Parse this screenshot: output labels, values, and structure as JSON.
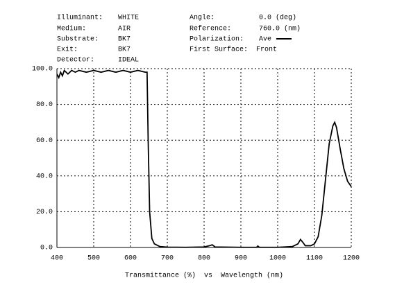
{
  "chart_data": {
    "type": "line",
    "info_left": [
      {
        "label": "Illuminant:",
        "value": "WHITE"
      },
      {
        "label": "Medium:",
        "value": "AIR"
      },
      {
        "label": "Substrate:",
        "value": "BK7"
      },
      {
        "label": "Exit:",
        "value": "BK7"
      },
      {
        "label": "Detector:",
        "value": "IDEAL"
      }
    ],
    "info_right": [
      {
        "label": "Angle:",
        "value": "0.0 (deg)"
      },
      {
        "label": "Reference:",
        "value": "760.0 (nm)"
      },
      {
        "label": "Polarization:",
        "value": "Ave"
      },
      {
        "label": "First Surface:",
        "value": "Front"
      }
    ],
    "xlabel": "Transmittance (%)  vs  Wavelength (nm)",
    "xlim": [
      400,
      1200
    ],
    "xticks": [
      400,
      500,
      600,
      700,
      800,
      900,
      1000,
      1100,
      1200
    ],
    "ylim": [
      0,
      100
    ],
    "yticks": [
      {
        "value": 0,
        "label": "0.0"
      },
      {
        "value": 20,
        "label": "20.0"
      },
      {
        "value": 40,
        "label": "40.0"
      },
      {
        "value": 60,
        "label": "60.0"
      },
      {
        "value": 80,
        "label": "80.0"
      },
      {
        "value": 100,
        "label": "100.0"
      }
    ],
    "grid": true,
    "x": [
      400,
      405,
      410,
      415,
      420,
      430,
      440,
      450,
      460,
      480,
      500,
      520,
      540,
      560,
      580,
      600,
      620,
      640,
      645,
      648,
      652,
      658,
      665,
      680,
      700,
      750,
      800,
      815,
      822,
      830,
      900,
      943,
      946,
      950,
      1000,
      1040,
      1055,
      1062,
      1068,
      1075,
      1090,
      1100,
      1110,
      1120,
      1130,
      1140,
      1150,
      1155,
      1160,
      1170,
      1180,
      1190,
      1200
    ],
    "series": [
      {
        "color": "#000000",
        "values": [
          97,
          95,
          98,
          96,
          99,
          97,
          99,
          98,
          99,
          98,
          99,
          98,
          99,
          98,
          99,
          98,
          99,
          98,
          98,
          60,
          20,
          5,
          2,
          0.5,
          0.2,
          0.1,
          0.3,
          1,
          1.5,
          0.3,
          0.1,
          0.1,
          0.8,
          0.1,
          0.1,
          0.5,
          2,
          4.5,
          3,
          1,
          1,
          2,
          6,
          18,
          38,
          58,
          68,
          70,
          67,
          55,
          44,
          37,
          34
        ]
      }
    ]
  }
}
